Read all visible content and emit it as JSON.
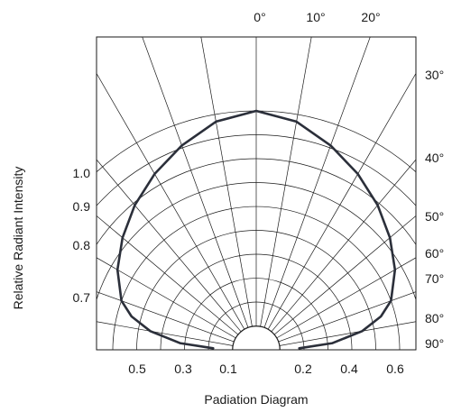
{
  "chart_data": {
    "type": "polar",
    "title": "",
    "xlabel": "Padiation Diagram",
    "ylabel": "Relative Radiant Intensity",
    "angle_tick_labels_top": [
      "0°",
      "10°",
      "20°"
    ],
    "angle_tick_labels_right": [
      "30°",
      "40°",
      "50°",
      "60°",
      "70°",
      "80°",
      "90°"
    ],
    "radial_tick_labels_left": [
      "1.0",
      "0.9",
      "0.8",
      "0.7"
    ],
    "bottom_tick_labels": [
      "0.5",
      "0.3",
      "0.1",
      "0.2",
      "0.4",
      "0.6"
    ],
    "angular_grid_deg": [
      -90,
      -80,
      -70,
      -60,
      -50,
      -40,
      -30,
      -20,
      -10,
      0,
      10,
      20,
      30,
      40,
      50,
      60,
      70,
      80,
      90
    ],
    "radial_grid": [
      0.1,
      0.2,
      0.3,
      0.4,
      0.5,
      0.6,
      0.7,
      0.8,
      0.9,
      1.0
    ],
    "series": [
      {
        "angle_deg": [
          0,
          10,
          20,
          30,
          40,
          50,
          60,
          70,
          75,
          80,
          85,
          88
        ],
        "relative_intensity": [
          1.0,
          0.97,
          0.91,
          0.85,
          0.79,
          0.73,
          0.67,
          0.6,
          0.54,
          0.45,
          0.32,
          0.18
        ]
      }
    ],
    "colors": {
      "grid": "#1a1a1a",
      "curve": "#2b2f3a",
      "frame": "#1a1a1a"
    }
  }
}
